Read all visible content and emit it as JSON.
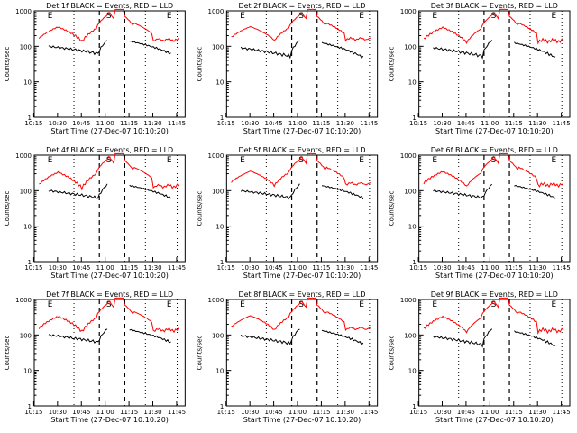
{
  "figure": {
    "common": {
      "xlabel": "Start Time (27-Dec-07 10:10:20)",
      "ylabel": "Counts/sec",
      "x_ticks": [
        "10:15",
        "10:30",
        "10:45",
        "11:00",
        "11:15",
        "11:30",
        "11:45"
      ],
      "y_ticks": [
        "1",
        "10",
        "100",
        "1000"
      ],
      "markers": [
        {
          "label": "E",
          "time_min": 15
        },
        {
          "label": "S",
          "time_min": 52
        },
        {
          "label": "E",
          "time_min": 90
        }
      ],
      "colors": {
        "events": "#000000",
        "lld": "#ff0000"
      }
    }
  },
  "chart_data": [
    {
      "type": "line",
      "title": "Det 1f BLACK = Events, RED = LLD",
      "xlabel": "Start Time (27-Dec-07 10:10:20)",
      "ylabel": "Counts/sec",
      "ylim": [
        1,
        1000
      ],
      "yscale": "log",
      "x_range_min": [
        5,
        100
      ],
      "series": [
        {
          "name": "Events",
          "color": "#000000",
          "values": []
        },
        {
          "name": "LLD",
          "color": "#ff0000",
          "values": []
        }
      ]
    },
    {
      "type": "line",
      "title": "Det 2f BLACK = Events, RED = LLD",
      "xlabel": "Start Time (27-Dec-07 10:10:20)",
      "ylabel": "Counts/sec",
      "ylim": [
        1,
        1000
      ],
      "yscale": "log",
      "x_range_min": [
        5,
        100
      ],
      "series": [
        {
          "name": "Events",
          "color": "#000000",
          "values": []
        },
        {
          "name": "LLD",
          "color": "#ff0000",
          "values": []
        }
      ]
    },
    {
      "type": "line",
      "title": "Det 3f BLACK = Events, RED = LLD",
      "xlabel": "Start Time (27-Dec-07 10:10:20)",
      "ylabel": "Counts/sec",
      "ylim": [
        1,
        1000
      ],
      "yscale": "log",
      "x_range_min": [
        5,
        100
      ],
      "series": [
        {
          "name": "Events",
          "color": "#000000",
          "values": []
        },
        {
          "name": "LLD",
          "color": "#ff0000",
          "values": []
        }
      ]
    },
    {
      "type": "line",
      "title": "Det 4f BLACK = Events, RED = LLD",
      "xlabel": "Start Time (27-Dec-07 10:10:20)",
      "ylabel": "Counts/sec",
      "ylim": [
        1,
        1000
      ],
      "yscale": "log",
      "x_range_min": [
        5,
        100
      ],
      "series": [
        {
          "name": "Events",
          "color": "#000000",
          "values": []
        },
        {
          "name": "LLD",
          "color": "#ff0000",
          "values": []
        }
      ]
    },
    {
      "type": "line",
      "title": "Det 5f BLACK = Events, RED = LLD",
      "xlabel": "Start Time (27-Dec-07 10:10:20)",
      "ylabel": "Counts/sec",
      "ylim": [
        1,
        1000
      ],
      "yscale": "log",
      "x_range_min": [
        5,
        100
      ],
      "series": [
        {
          "name": "Events",
          "color": "#000000",
          "values": []
        },
        {
          "name": "LLD",
          "color": "#ff0000",
          "values": []
        }
      ]
    },
    {
      "type": "line",
      "title": "Det 6f BLACK = Events, RED = LLD",
      "xlabel": "Start Time (27-Dec-07 10:10:20)",
      "ylabel": "Counts/sec",
      "ylim": [
        1,
        1000
      ],
      "yscale": "log",
      "x_range_min": [
        5,
        100
      ],
      "series": [
        {
          "name": "Events",
          "color": "#000000",
          "values": []
        },
        {
          "name": "LLD",
          "color": "#ff0000",
          "values": []
        }
      ]
    },
    {
      "type": "line",
      "title": "Det 7f BLACK = Events, RED = LLD",
      "xlabel": "Start Time (27-Dec-07 10:10:20)",
      "ylabel": "Counts/sec",
      "ylim": [
        1,
        1000
      ],
      "yscale": "log",
      "x_range_min": [
        5,
        100
      ],
      "series": [
        {
          "name": "Events",
          "color": "#000000",
          "values": []
        },
        {
          "name": "LLD",
          "color": "#ff0000",
          "values": []
        }
      ]
    },
    {
      "type": "line",
      "title": "Det 8f BLACK = Events, RED = LLD",
      "xlabel": "Start Time (27-Dec-07 10:10:20)",
      "ylabel": "Counts/sec",
      "ylim": [
        1,
        1000
      ],
      "yscale": "log",
      "x_range_min": [
        5,
        100
      ],
      "series": [
        {
          "name": "Events",
          "color": "#000000",
          "values": []
        },
        {
          "name": "LLD",
          "color": "#ff0000",
          "values": []
        }
      ]
    },
    {
      "type": "line",
      "title": "Det 9f BLACK = Events, RED = LLD",
      "xlabel": "Start Time (27-Dec-07 10:10:20)",
      "ylabel": "Counts/sec",
      "ylim": [
        1,
        1000
      ],
      "yscale": "log",
      "x_range_min": [
        5,
        100
      ],
      "series": [
        {
          "name": "Events",
          "color": "#000000",
          "values": []
        },
        {
          "name": "LLD",
          "color": "#ff0000",
          "values": []
        }
      ]
    }
  ]
}
